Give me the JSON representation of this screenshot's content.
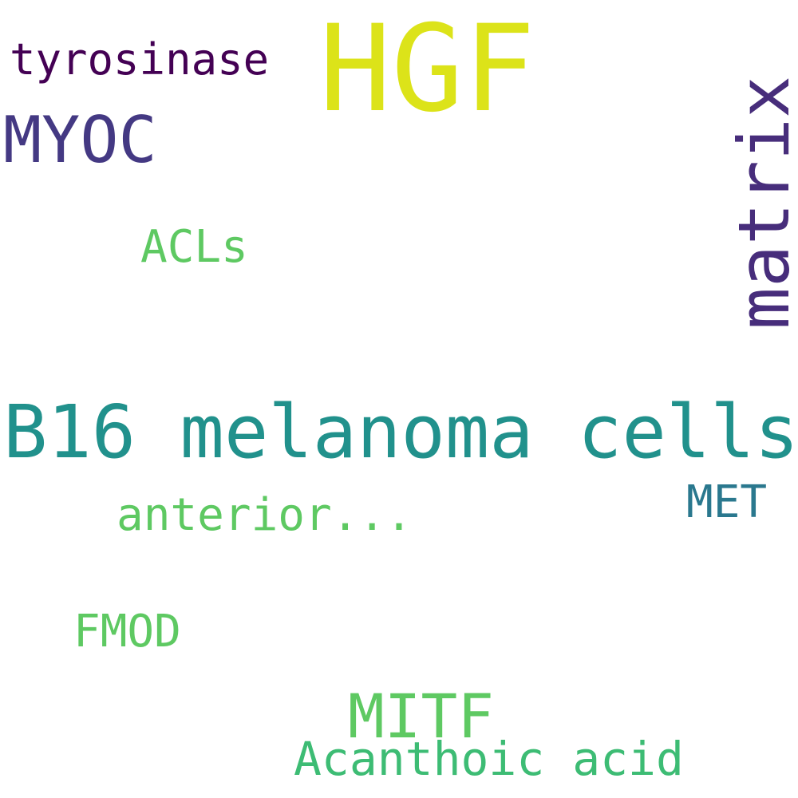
{
  "words": [
    {
      "key": "hgf",
      "text": "HGF",
      "color": "#dce319"
    },
    {
      "key": "tyrosinase",
      "text": "tyrosinase",
      "color": "#440154"
    },
    {
      "key": "myoc",
      "text": "MYOC",
      "color": "#443983"
    },
    {
      "key": "acls",
      "text": "ACLs",
      "color": "#5ec962"
    },
    {
      "key": "matrix",
      "text": "matrix",
      "color": "#472d7b"
    },
    {
      "key": "b16",
      "text": "B16 melanoma cells",
      "color": "#21918c"
    },
    {
      "key": "anterior",
      "text": "anterior...",
      "color": "#5ec962"
    },
    {
      "key": "met",
      "text": "MET",
      "color": "#2a788e"
    },
    {
      "key": "fmod",
      "text": "FMOD",
      "color": "#5ec962"
    },
    {
      "key": "mitf",
      "text": "MITF",
      "color": "#5ec962"
    },
    {
      "key": "acanthoic",
      "text": "Acanthoic acid",
      "color": "#3dbc74"
    }
  ]
}
